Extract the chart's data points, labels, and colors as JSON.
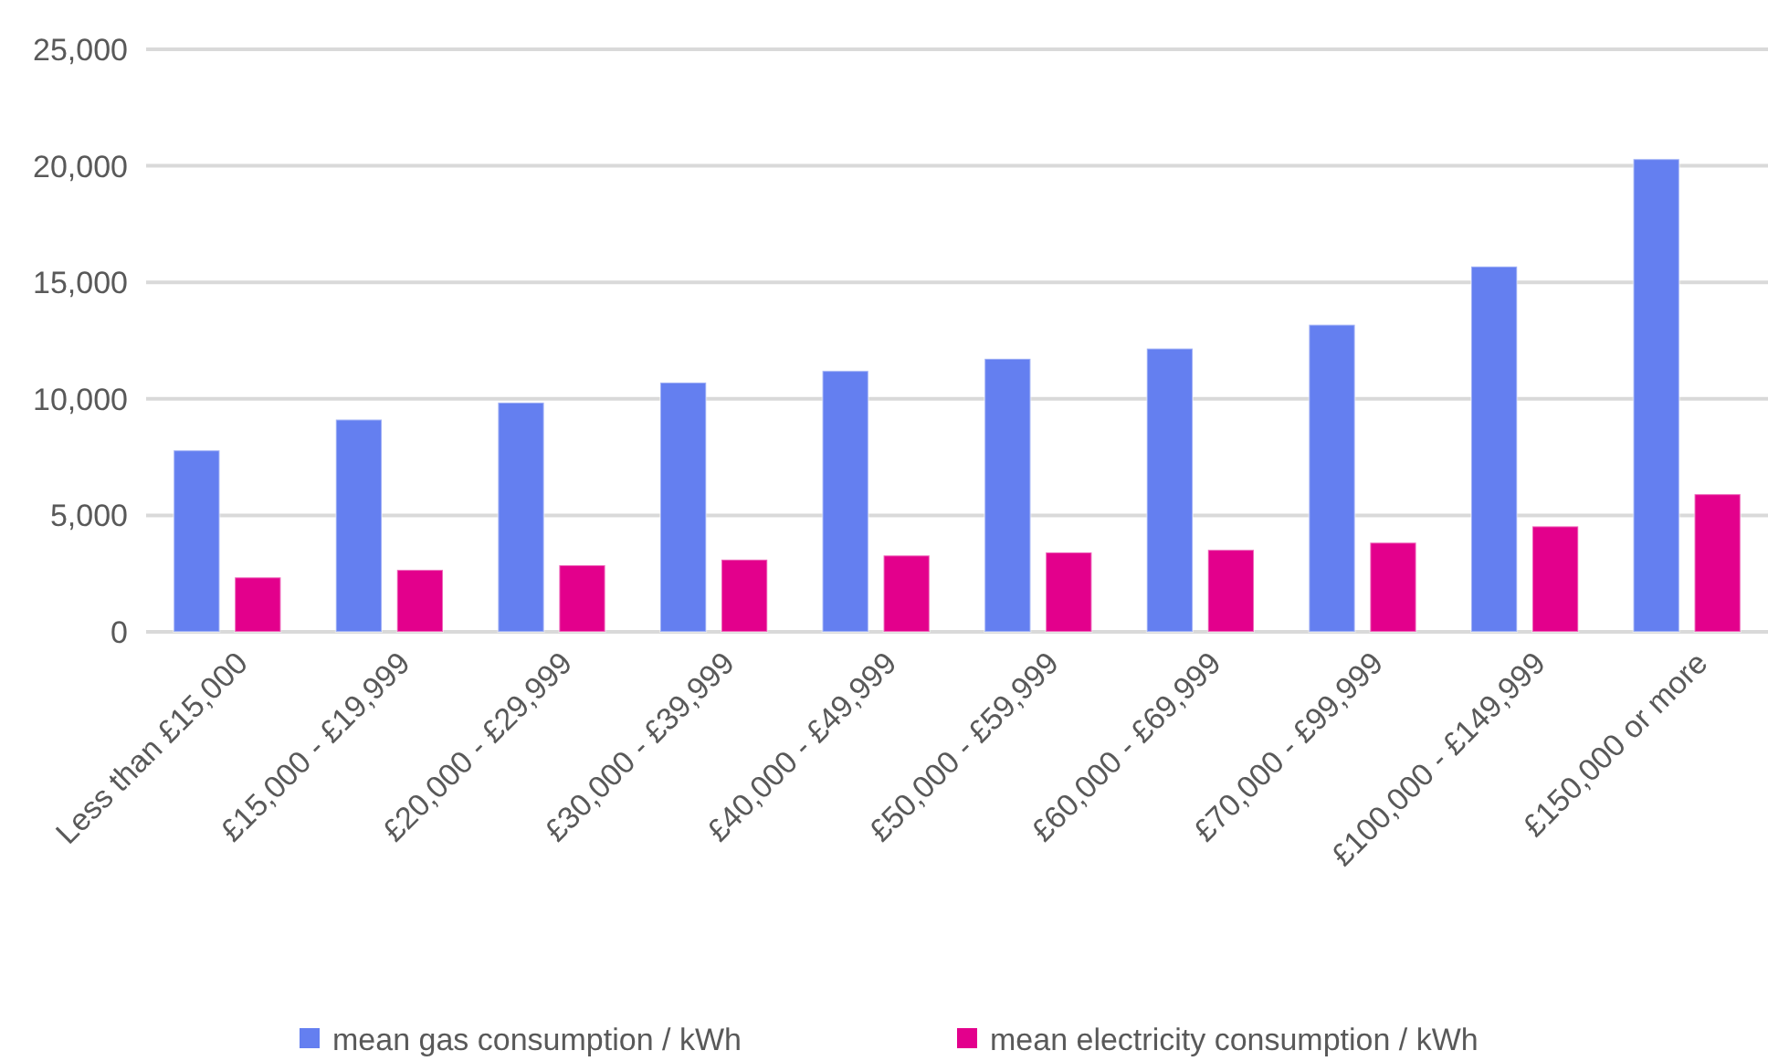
{
  "chart_data": {
    "type": "bar",
    "categories": [
      "Less than £15,000",
      "£15,000 - £19,999",
      "£20,000 - £29,999",
      "£30,000 - £39,999",
      "£40,000 - £49,999",
      "£50,000 - £59,999",
      "£60,000 - £69,999",
      "£70,000 - £99,999",
      "£100,000 - £149,999",
      "£150,000 or more"
    ],
    "series": [
      {
        "name": "mean gas consumption / kWh",
        "color": "#647ff0",
        "values": [
          7790,
          9110,
          9840,
          10700,
          11200,
          11720,
          12160,
          13180,
          15680,
          20290
        ]
      },
      {
        "name": "mean electricity consumption / kWh",
        "color": "#e3008c",
        "values": [
          2340,
          2660,
          2860,
          3100,
          3280,
          3410,
          3520,
          3830,
          4530,
          5910
        ]
      }
    ],
    "ylim": [
      0,
      25000
    ],
    "yticks": [
      {
        "value": 0,
        "label": "0"
      },
      {
        "value": 5000,
        "label": "5,000"
      },
      {
        "value": 10000,
        "label": "10,000"
      },
      {
        "value": 15000,
        "label": "15,000"
      },
      {
        "value": 20000,
        "label": "20,000"
      },
      {
        "value": 25000,
        "label": "25,000"
      }
    ],
    "grid": "y",
    "legend": "bottom"
  }
}
